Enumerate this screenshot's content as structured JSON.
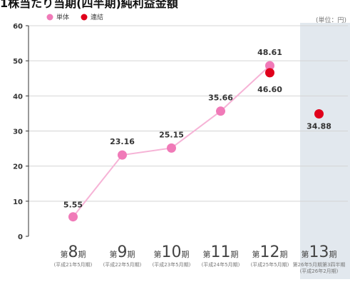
{
  "chart_data": {
    "type": "line",
    "title": "1株当たり当期(四半期)純利益金額",
    "unit_label": "(単位：円)",
    "ylim": [
      0,
      60
    ],
    "yticks": [
      "0",
      "10",
      "20",
      "30",
      "40",
      "50",
      "60"
    ],
    "grid": true,
    "legend_position": "top-left",
    "categories": [
      {
        "prefix": "第",
        "num": "8",
        "suffix": "期",
        "sub": [
          "(平成21年5月期)"
        ]
      },
      {
        "prefix": "第",
        "num": "9",
        "suffix": "期",
        "sub": [
          "(平成22年5月期)"
        ]
      },
      {
        "prefix": "第",
        "num": "10",
        "suffix": "期",
        "sub": [
          "(平成23年5月期)"
        ]
      },
      {
        "prefix": "第",
        "num": "11",
        "suffix": "期",
        "sub": [
          "(平成24年5月期)"
        ]
      },
      {
        "prefix": "第",
        "num": "12",
        "suffix": "期",
        "sub": [
          "(平成25年5月期)"
        ]
      },
      {
        "prefix": "第",
        "num": "13",
        "suffix": "期",
        "sub": [
          "第26年5月期第3四半期",
          "(平成26年2月期)"
        ]
      }
    ],
    "highlight_category": 5,
    "series": [
      {
        "name": "単体",
        "color": "#f07ab8",
        "line": true,
        "values": [
          5.55,
          23.16,
          25.15,
          35.66,
          48.61,
          null
        ],
        "labels": [
          "5.55",
          "23.16",
          "25.15",
          "35.66",
          "48.61",
          ""
        ]
      },
      {
        "name": "連結",
        "color": "#e0001b",
        "line": false,
        "values": [
          null,
          null,
          null,
          null,
          46.6,
          34.88
        ],
        "labels": [
          "",
          "",
          "",
          "",
          "46.60",
          "34.88"
        ]
      }
    ]
  }
}
